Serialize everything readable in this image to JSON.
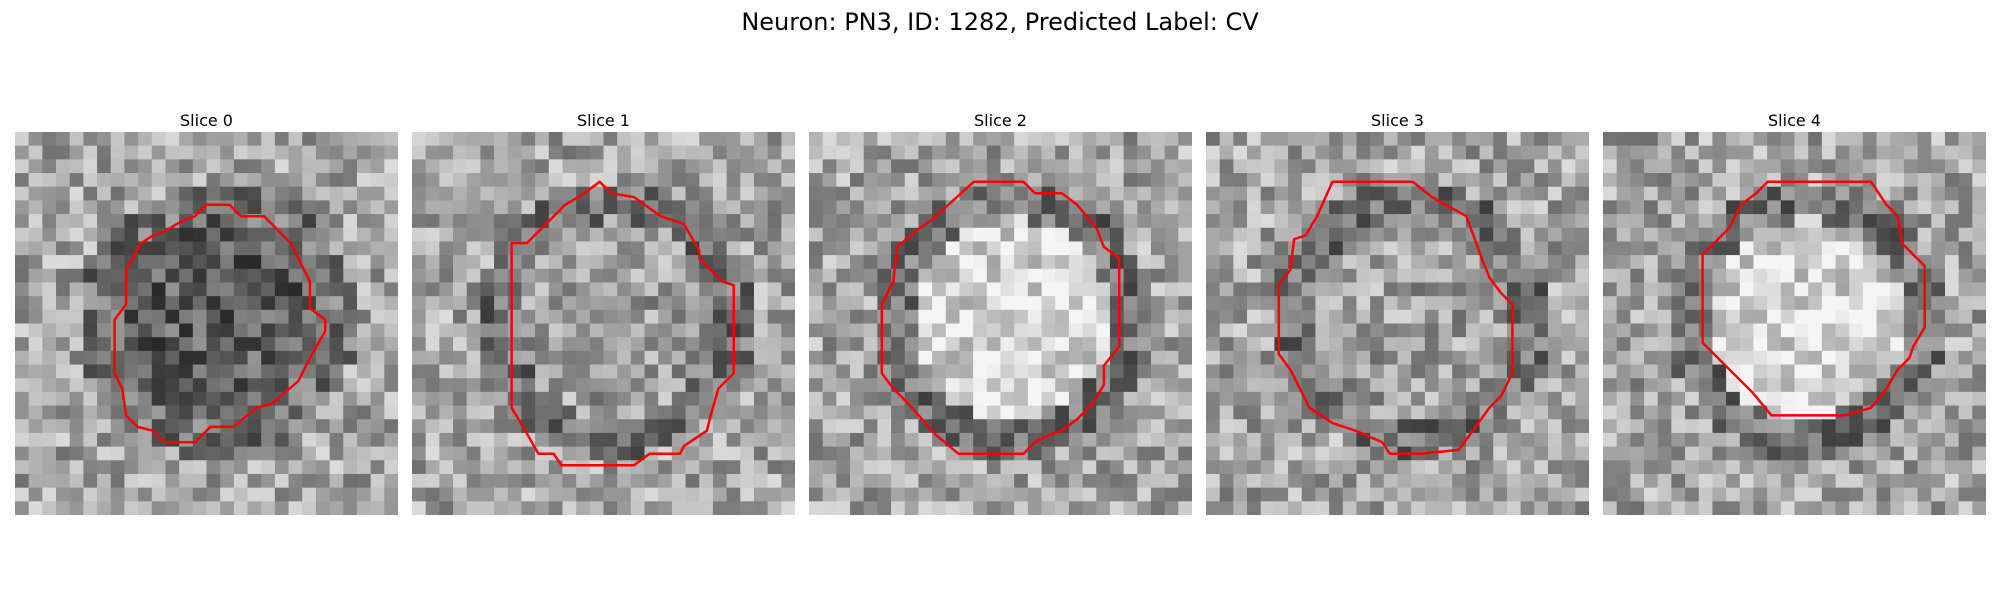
{
  "figure": {
    "title": "Neuron: PN3, ID: 1282, Predicted Label: CV"
  },
  "panels": [
    {
      "title": "Slice 0",
      "seed": 11,
      "interior": "dark",
      "contour": [
        [
          0.5,
          0.19
        ],
        [
          0.56,
          0.19
        ],
        [
          0.59,
          0.22
        ],
        [
          0.65,
          0.22
        ],
        [
          0.72,
          0.29
        ],
        [
          0.77,
          0.39
        ],
        [
          0.77,
          0.46
        ],
        [
          0.81,
          0.49
        ],
        [
          0.81,
          0.52
        ],
        [
          0.77,
          0.59
        ],
        [
          0.74,
          0.65
        ],
        [
          0.67,
          0.71
        ],
        [
          0.63,
          0.72
        ],
        [
          0.57,
          0.77
        ],
        [
          0.51,
          0.77
        ],
        [
          0.47,
          0.81
        ],
        [
          0.39,
          0.81
        ],
        [
          0.36,
          0.78
        ],
        [
          0.32,
          0.77
        ],
        [
          0.29,
          0.74
        ],
        [
          0.28,
          0.67
        ],
        [
          0.26,
          0.63
        ],
        [
          0.26,
          0.49
        ],
        [
          0.29,
          0.45
        ],
        [
          0.29,
          0.36
        ],
        [
          0.33,
          0.29
        ],
        [
          0.36,
          0.27
        ],
        [
          0.39,
          0.26
        ],
        [
          0.44,
          0.23
        ],
        [
          0.47,
          0.22
        ]
      ]
    },
    {
      "title": "Slice 1",
      "seed": 23,
      "interior": "mid",
      "contour": [
        [
          0.49,
          0.13
        ],
        [
          0.52,
          0.16
        ],
        [
          0.58,
          0.17
        ],
        [
          0.65,
          0.22
        ],
        [
          0.71,
          0.24
        ],
        [
          0.75,
          0.31
        ],
        [
          0.75,
          0.33
        ],
        [
          0.81,
          0.39
        ],
        [
          0.84,
          0.4
        ],
        [
          0.84,
          0.63
        ],
        [
          0.8,
          0.67
        ],
        [
          0.78,
          0.74
        ],
        [
          0.77,
          0.78
        ],
        [
          0.71,
          0.82
        ],
        [
          0.7,
          0.84
        ],
        [
          0.62,
          0.84
        ],
        [
          0.58,
          0.87
        ],
        [
          0.39,
          0.87
        ],
        [
          0.37,
          0.84
        ],
        [
          0.33,
          0.84
        ],
        [
          0.29,
          0.77
        ],
        [
          0.26,
          0.72
        ],
        [
          0.26,
          0.29
        ],
        [
          0.3,
          0.29
        ],
        [
          0.4,
          0.19
        ],
        [
          0.45,
          0.16
        ]
      ]
    },
    {
      "title": "Slice 2",
      "seed": 37,
      "interior": "bright",
      "contour": [
        [
          0.43,
          0.13
        ],
        [
          0.56,
          0.13
        ],
        [
          0.59,
          0.16
        ],
        [
          0.66,
          0.16
        ],
        [
          0.7,
          0.19
        ],
        [
          0.75,
          0.25
        ],
        [
          0.77,
          0.3
        ],
        [
          0.81,
          0.33
        ],
        [
          0.81,
          0.56
        ],
        [
          0.77,
          0.61
        ],
        [
          0.77,
          0.66
        ],
        [
          0.74,
          0.71
        ],
        [
          0.7,
          0.75
        ],
        [
          0.66,
          0.78
        ],
        [
          0.63,
          0.79
        ],
        [
          0.59,
          0.81
        ],
        [
          0.56,
          0.84
        ],
        [
          0.39,
          0.84
        ],
        [
          0.33,
          0.79
        ],
        [
          0.26,
          0.71
        ],
        [
          0.22,
          0.67
        ],
        [
          0.19,
          0.63
        ],
        [
          0.19,
          0.45
        ],
        [
          0.22,
          0.39
        ],
        [
          0.23,
          0.3
        ],
        [
          0.29,
          0.25
        ],
        [
          0.32,
          0.23
        ]
      ]
    },
    {
      "title": "Slice 3",
      "seed": 53,
      "interior": "mid",
      "contour": [
        [
          0.33,
          0.13
        ],
        [
          0.54,
          0.13
        ],
        [
          0.59,
          0.17
        ],
        [
          0.68,
          0.22
        ],
        [
          0.72,
          0.33
        ],
        [
          0.74,
          0.38
        ],
        [
          0.77,
          0.42
        ],
        [
          0.8,
          0.45
        ],
        [
          0.8,
          0.55
        ],
        [
          0.8,
          0.63
        ],
        [
          0.77,
          0.69
        ],
        [
          0.74,
          0.72
        ],
        [
          0.66,
          0.83
        ],
        [
          0.56,
          0.84
        ],
        [
          0.48,
          0.84
        ],
        [
          0.46,
          0.81
        ],
        [
          0.39,
          0.78
        ],
        [
          0.33,
          0.76
        ],
        [
          0.27,
          0.72
        ],
        [
          0.25,
          0.68
        ],
        [
          0.22,
          0.62
        ],
        [
          0.19,
          0.58
        ],
        [
          0.19,
          0.4
        ],
        [
          0.22,
          0.36
        ],
        [
          0.23,
          0.28
        ],
        [
          0.26,
          0.27
        ],
        [
          0.29,
          0.22
        ]
      ]
    },
    {
      "title": "Slice 4",
      "seed": 71,
      "interior": "bright",
      "contour": [
        [
          0.43,
          0.13
        ],
        [
          0.7,
          0.13
        ],
        [
          0.74,
          0.19
        ],
        [
          0.77,
          0.22
        ],
        [
          0.78,
          0.29
        ],
        [
          0.81,
          0.32
        ],
        [
          0.84,
          0.35
        ],
        [
          0.84,
          0.51
        ],
        [
          0.81,
          0.56
        ],
        [
          0.8,
          0.59
        ],
        [
          0.77,
          0.62
        ],
        [
          0.74,
          0.67
        ],
        [
          0.7,
          0.72
        ],
        [
          0.63,
          0.74
        ],
        [
          0.44,
          0.74
        ],
        [
          0.39,
          0.68
        ],
        [
          0.33,
          0.62
        ],
        [
          0.29,
          0.58
        ],
        [
          0.26,
          0.55
        ],
        [
          0.26,
          0.32
        ],
        [
          0.29,
          0.29
        ],
        [
          0.33,
          0.25
        ],
        [
          0.36,
          0.19
        ],
        [
          0.4,
          0.16
        ]
      ]
    }
  ],
  "style": {
    "contour_color": "#ff0000"
  }
}
